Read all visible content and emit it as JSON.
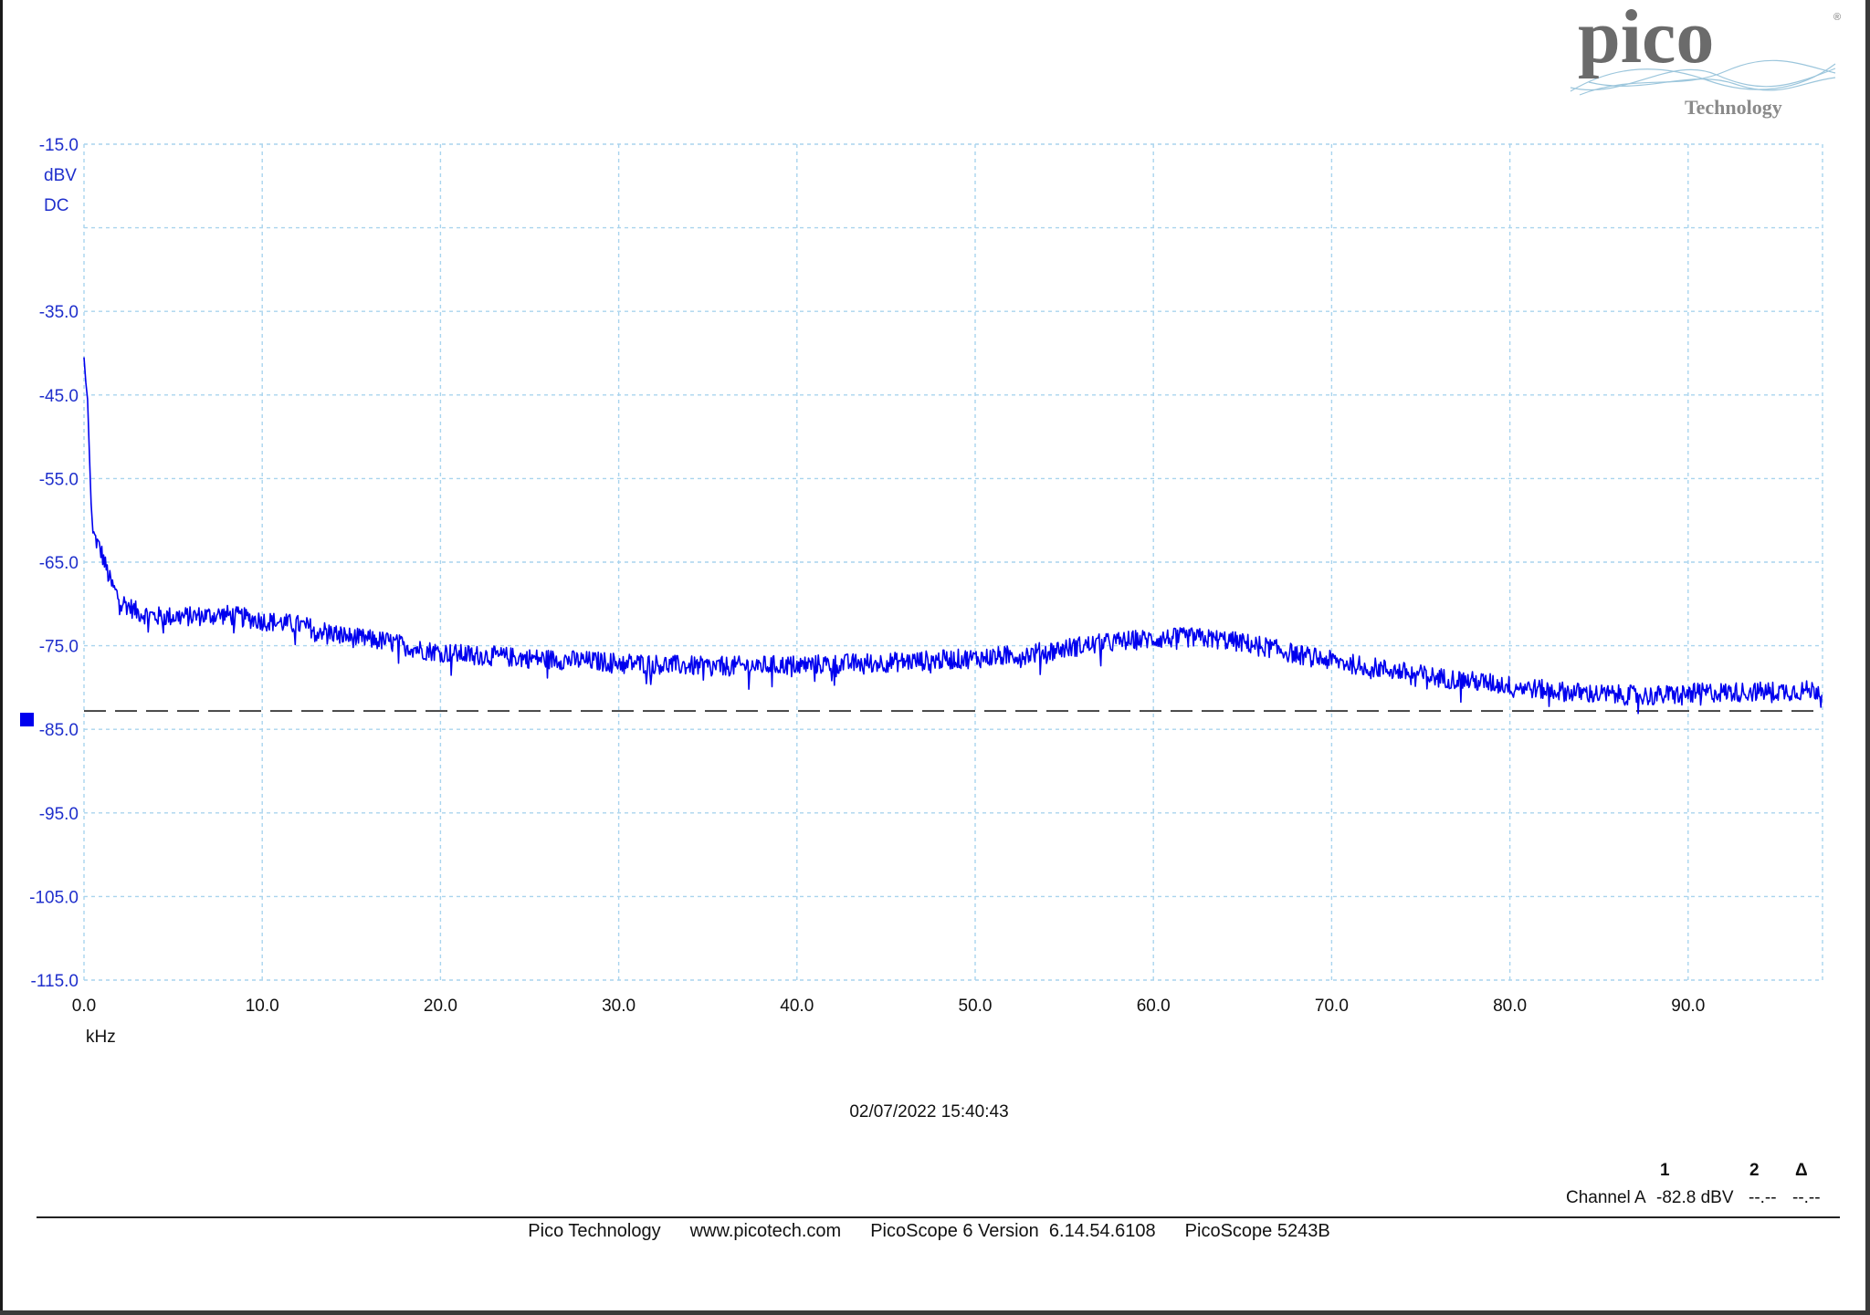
{
  "chart_data": {
    "type": "line",
    "xlabel": "kHz",
    "ylabel": "dBV",
    "coupling": "DC",
    "xlim": [
      0,
      97.7
    ],
    "ylim": [
      -115,
      -15
    ],
    "x_ticks": [
      "0.0",
      "10.0",
      "20.0",
      "30.0",
      "40.0",
      "50.0",
      "60.0",
      "70.0",
      "80.0",
      "90.0"
    ],
    "y_ticks": [
      "-15.0",
      "-35.0",
      "-45.0",
      "-55.0",
      "-65.0",
      "-75.0",
      "-85.0",
      "-95.0",
      "-105.0",
      "-115.0"
    ],
    "grid": true,
    "line_color": "#0000ee",
    "series": [
      {
        "x": [
          0,
          0.1,
          0.2,
          0.3,
          0.4,
          0.5,
          1.0,
          1.5,
          2.0,
          3.0,
          4.0,
          6.0,
          8.0,
          10.0,
          12.0,
          15.0,
          17.0,
          19.0,
          21.0,
          25.0,
          30.0,
          35.0,
          40.0,
          45.0,
          50.0,
          53.0,
          56.0,
          59.0,
          62.0,
          64.0,
          66.0,
          68.0,
          70.0,
          73.0,
          76.0,
          79.0,
          82.0,
          85.0,
          88.0,
          91.0,
          94.0,
          97.5
        ],
        "y": [
          -40.5,
          -43.5,
          -45.5,
          -52.0,
          -58.0,
          -61.5,
          -64.0,
          -67.5,
          -69.5,
          -71.0,
          -71.5,
          -71.5,
          -71.3,
          -72.0,
          -72.5,
          -74.0,
          -74.5,
          -75.5,
          -76.0,
          -76.5,
          -77.0,
          -77.5,
          -77.3,
          -77.0,
          -76.5,
          -76.0,
          -75.0,
          -74.3,
          -74.0,
          -74.3,
          -75.0,
          -76.0,
          -76.8,
          -77.8,
          -78.8,
          -79.5,
          -80.3,
          -80.8,
          -81.0,
          -80.6,
          -80.5,
          -80.3
        ]
      }
    ],
    "reference_line": {
      "y": -82.8,
      "style": "dashed",
      "color": "#222222"
    }
  },
  "brand": {
    "logo_word": "pico",
    "logo_sub": "Technology"
  },
  "timestamp": "02/07/2022 15:40:43",
  "cursor_table": {
    "headers": [
      "1",
      "2",
      "Δ"
    ],
    "row_label": "Channel A",
    "values": [
      "-82.8 dBV",
      "--.--",
      "--.--"
    ]
  },
  "footer": {
    "company": "Pico Technology",
    "website": "www.picotech.com",
    "software": "PicoScope 6 Version  6.14.54.6108",
    "device": "PicoScope 5243B"
  }
}
